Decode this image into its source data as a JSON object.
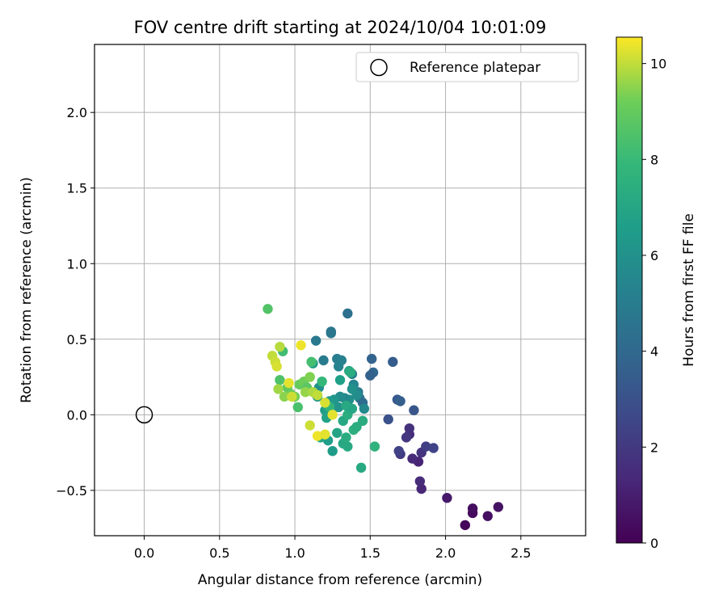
{
  "chart_data": {
    "type": "scatter",
    "title": "FOV centre drift starting at 2024/10/04 10:01:09",
    "xlabel": "Angular distance from reference (arcmin)",
    "ylabel": "Rotation from reference (arcmin)",
    "xlim": [
      -0.33,
      2.93
    ],
    "ylim": [
      -0.8,
      2.45
    ],
    "xticks": [
      0.0,
      0.5,
      1.0,
      1.5,
      2.0,
      2.5
    ],
    "xtick_labels": [
      "0.0",
      "0.5",
      "1.0",
      "1.5",
      "2.0",
      "2.5"
    ],
    "yticks": [
      -0.5,
      0.0,
      0.5,
      1.0,
      1.5,
      2.0
    ],
    "ytick_labels": [
      "−0.5",
      "0.0",
      "0.5",
      "1.0",
      "1.5",
      "2.0"
    ],
    "grid": true,
    "legend": {
      "placement": "upper right",
      "entries": [
        "Reference platepar"
      ]
    },
    "reference_point": {
      "x": 0.0,
      "y": 0.0,
      "marker": "open circle"
    },
    "colorbar": {
      "label": "Hours from first FF file",
      "range": [
        0,
        10.55
      ],
      "ticks": [
        0,
        2,
        4,
        6,
        8,
        10
      ],
      "tick_labels": [
        "0",
        "2",
        "4",
        "6",
        "8",
        "10"
      ],
      "colormap": "viridis"
    },
    "points": [
      {
        "x": 2.13,
        "y": -0.73,
        "h": 0.2
      },
      {
        "x": 2.18,
        "y": -0.65,
        "h": 0.3
      },
      {
        "x": 2.18,
        "y": -0.62,
        "h": 0.4
      },
      {
        "x": 2.28,
        "y": -0.67,
        "h": 0.5
      },
      {
        "x": 2.35,
        "y": -0.61,
        "h": 0.6
      },
      {
        "x": 2.01,
        "y": -0.55,
        "h": 0.8
      },
      {
        "x": 1.84,
        "y": -0.49,
        "h": 1.3
      },
      {
        "x": 1.83,
        "y": -0.44,
        "h": 1.5
      },
      {
        "x": 1.82,
        "y": -0.31,
        "h": 1.2
      },
      {
        "x": 1.78,
        "y": -0.29,
        "h": 1.4
      },
      {
        "x": 1.76,
        "y": -0.13,
        "h": 1.5
      },
      {
        "x": 1.76,
        "y": -0.09,
        "h": 1.7
      },
      {
        "x": 1.74,
        "y": -0.15,
        "h": 1.9
      },
      {
        "x": 1.7,
        "y": -0.26,
        "h": 2.0
      },
      {
        "x": 1.69,
        "y": -0.24,
        "h": 2.3
      },
      {
        "x": 1.84,
        "y": -0.25,
        "h": 1.8
      },
      {
        "x": 1.87,
        "y": -0.21,
        "h": 2.2
      },
      {
        "x": 1.92,
        "y": -0.22,
        "h": 2.4
      },
      {
        "x": 1.62,
        "y": -0.03,
        "h": 3.0
      },
      {
        "x": 1.79,
        "y": 0.03,
        "h": 3.2
      },
      {
        "x": 1.68,
        "y": 0.1,
        "h": 3.3
      },
      {
        "x": 1.7,
        "y": 0.09,
        "h": 3.6
      },
      {
        "x": 1.65,
        "y": 0.35,
        "h": 3.5
      },
      {
        "x": 1.51,
        "y": 0.37,
        "h": 3.8
      },
      {
        "x": 1.52,
        "y": 0.28,
        "h": 3.9
      },
      {
        "x": 1.5,
        "y": 0.26,
        "h": 3.7
      },
      {
        "x": 1.35,
        "y": 0.67,
        "h": 4.4
      },
      {
        "x": 1.24,
        "y": 0.55,
        "h": 4.5
      },
      {
        "x": 1.24,
        "y": 0.54,
        "h": 4.7
      },
      {
        "x": 1.14,
        "y": 0.49,
        "h": 4.8
      },
      {
        "x": 1.19,
        "y": 0.36,
        "h": 4.9
      },
      {
        "x": 1.28,
        "y": 0.37,
        "h": 5.0
      },
      {
        "x": 1.31,
        "y": 0.36,
        "h": 5.2
      },
      {
        "x": 1.29,
        "y": 0.32,
        "h": 5.3
      },
      {
        "x": 1.38,
        "y": 0.27,
        "h": 5.1
      },
      {
        "x": 1.39,
        "y": 0.2,
        "h": 5.4
      },
      {
        "x": 1.42,
        "y": 0.15,
        "h": 5.0
      },
      {
        "x": 1.43,
        "y": 0.11,
        "h": 4.6
      },
      {
        "x": 1.45,
        "y": 0.08,
        "h": 4.2
      },
      {
        "x": 1.46,
        "y": 0.04,
        "h": 5.6
      },
      {
        "x": 1.41,
        "y": 0.13,
        "h": 5.8
      },
      {
        "x": 1.38,
        "y": 0.17,
        "h": 6.0
      },
      {
        "x": 1.36,
        "y": 0.1,
        "h": 5.9
      },
      {
        "x": 1.33,
        "y": 0.11,
        "h": 5.5
      },
      {
        "x": 1.3,
        "y": 0.12,
        "h": 5.7
      },
      {
        "x": 1.29,
        "y": 0.05,
        "h": 6.1
      },
      {
        "x": 1.26,
        "y": 0.1,
        "h": 6.2
      },
      {
        "x": 1.23,
        "y": 0.09,
        "h": 6.4
      },
      {
        "x": 1.2,
        "y": 0.03,
        "h": 6.6
      },
      {
        "x": 1.21,
        "y": -0.02,
        "h": 6.8
      },
      {
        "x": 1.15,
        "y": 0.12,
        "h": 6.3
      },
      {
        "x": 1.16,
        "y": 0.18,
        "h": 6.0
      },
      {
        "x": 1.12,
        "y": 0.34,
        "h": 6.5
      },
      {
        "x": 1.3,
        "y": 0.23,
        "h": 6.7
      },
      {
        "x": 1.36,
        "y": 0.29,
        "h": 7.0
      },
      {
        "x": 1.28,
        "y": -0.12,
        "h": 6.9
      },
      {
        "x": 1.25,
        "y": -0.24,
        "h": 6.5
      },
      {
        "x": 1.22,
        "y": -0.17,
        "h": 6.6
      },
      {
        "x": 1.17,
        "y": -0.15,
        "h": 7.0
      },
      {
        "x": 1.32,
        "y": -0.19,
        "h": 7.1
      },
      {
        "x": 1.35,
        "y": -0.21,
        "h": 7.2
      },
      {
        "x": 1.34,
        "y": -0.15,
        "h": 7.3
      },
      {
        "x": 1.32,
        "y": -0.04,
        "h": 7.1
      },
      {
        "x": 1.35,
        "y": 0.0,
        "h": 7.4
      },
      {
        "x": 1.34,
        "y": 0.06,
        "h": 7.2
      },
      {
        "x": 1.38,
        "y": 0.04,
        "h": 7.0
      },
      {
        "x": 1.37,
        "y": 0.28,
        "h": 7.3
      },
      {
        "x": 1.39,
        "y": -0.1,
        "h": 7.5
      },
      {
        "x": 1.41,
        "y": -0.08,
        "h": 7.4
      },
      {
        "x": 1.45,
        "y": -0.04,
        "h": 7.3
      },
      {
        "x": 1.44,
        "y": -0.35,
        "h": 7.2
      },
      {
        "x": 1.53,
        "y": -0.21,
        "h": 7.6
      },
      {
        "x": 1.18,
        "y": 0.22,
        "h": 7.9
      },
      {
        "x": 1.11,
        "y": 0.35,
        "h": 8.3
      },
      {
        "x": 0.82,
        "y": 0.7,
        "h": 8.6
      },
      {
        "x": 0.92,
        "y": 0.42,
        "h": 8.2
      },
      {
        "x": 0.9,
        "y": 0.23,
        "h": 8.5
      },
      {
        "x": 1.02,
        "y": 0.05,
        "h": 8.4
      },
      {
        "x": 1.23,
        "y": 0.05,
        "h": 7.8
      },
      {
        "x": 0.95,
        "y": 0.18,
        "h": 8.9
      },
      {
        "x": 0.97,
        "y": 0.14,
        "h": 9.1
      },
      {
        "x": 0.93,
        "y": 0.12,
        "h": 9.5
      },
      {
        "x": 1.0,
        "y": 0.12,
        "h": 9.3
      },
      {
        "x": 1.03,
        "y": 0.2,
        "h": 9.0
      },
      {
        "x": 1.06,
        "y": 0.22,
        "h": 9.2
      },
      {
        "x": 1.08,
        "y": 0.18,
        "h": 8.8
      },
      {
        "x": 1.1,
        "y": 0.25,
        "h": 9.4
      },
      {
        "x": 1.07,
        "y": 0.15,
        "h": 9.6
      },
      {
        "x": 1.12,
        "y": 0.15,
        "h": 9.8
      },
      {
        "x": 1.15,
        "y": 0.13,
        "h": 10.0
      },
      {
        "x": 0.89,
        "y": 0.17,
        "h": 9.7
      },
      {
        "x": 0.85,
        "y": 0.39,
        "h": 10.0
      },
      {
        "x": 0.87,
        "y": 0.35,
        "h": 10.1
      },
      {
        "x": 0.88,
        "y": 0.32,
        "h": 10.2
      },
      {
        "x": 0.9,
        "y": 0.45,
        "h": 9.9
      },
      {
        "x": 0.96,
        "y": 0.21,
        "h": 10.3
      },
      {
        "x": 0.98,
        "y": 0.12,
        "h": 10.1
      },
      {
        "x": 1.04,
        "y": 0.46,
        "h": 10.4
      },
      {
        "x": 1.2,
        "y": 0.08,
        "h": 10.2
      },
      {
        "x": 1.25,
        "y": 0.0,
        "h": 10.3
      },
      {
        "x": 1.1,
        "y": -0.07,
        "h": 10.1
      },
      {
        "x": 1.15,
        "y": -0.14,
        "h": 10.4
      },
      {
        "x": 1.2,
        "y": -0.13,
        "h": 10.3
      }
    ]
  }
}
